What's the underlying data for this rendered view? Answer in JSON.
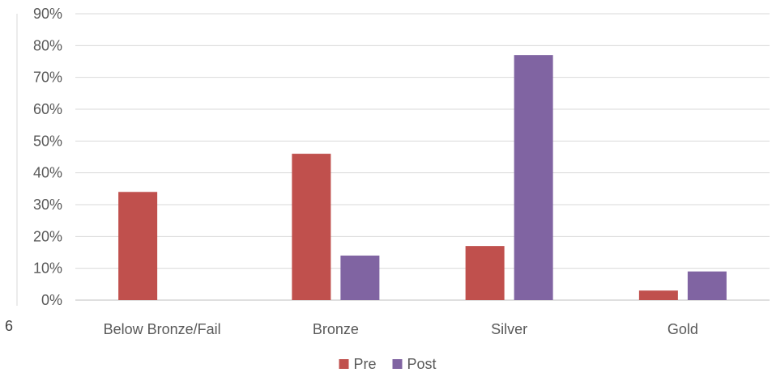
{
  "stray_label": "6",
  "chart_data": {
    "type": "bar",
    "title": "",
    "xlabel": "",
    "ylabel": "",
    "categories": [
      "Below Bronze/Fail",
      "Bronze",
      "Silver",
      "Gold"
    ],
    "series": [
      {
        "name": "Pre",
        "color": "#c0504d",
        "values": [
          0.34,
          0.46,
          0.17,
          0.03
        ]
      },
      {
        "name": "Post",
        "color": "#8064a2",
        "values": [
          0.0,
          0.14,
          0.77,
          0.09
        ]
      }
    ],
    "ylim": [
      0,
      0.9
    ],
    "yticks": [
      0,
      0.1,
      0.2,
      0.3,
      0.4,
      0.5,
      0.6,
      0.7,
      0.8,
      0.9
    ],
    "ytick_labels": [
      "0%",
      "10%",
      "20%",
      "30%",
      "40%",
      "50%",
      "60%",
      "70%",
      "80%",
      "90%"
    ],
    "grid": true,
    "legend_position": "bottom"
  }
}
